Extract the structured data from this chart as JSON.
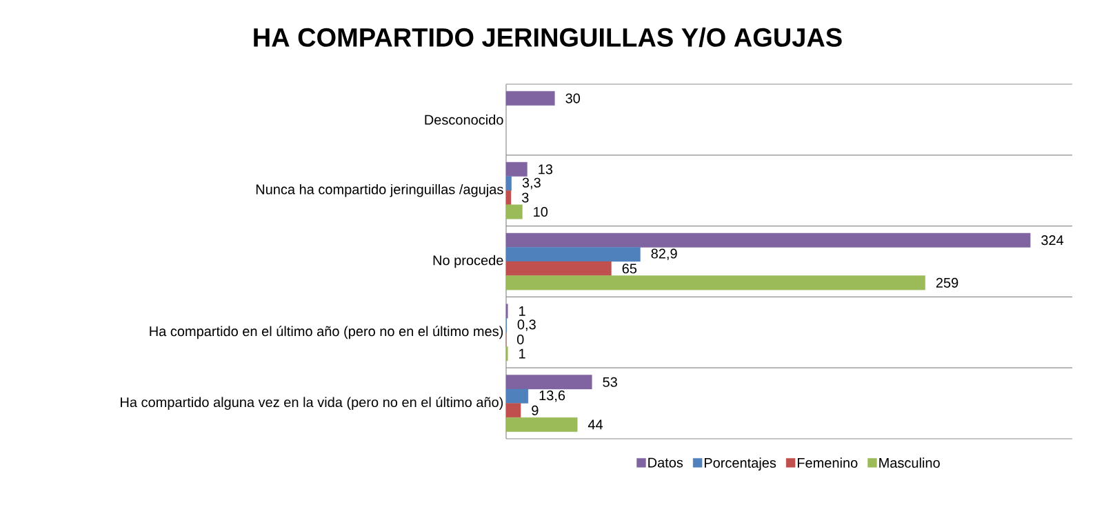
{
  "chart_data": {
    "type": "bar",
    "orientation": "horizontal",
    "title": "HA COMPARTIDO JERINGUILLAS Y/O AGUJAS",
    "categories": [
      "Desconocido",
      "Nunca ha compartido jeringuillas /agujas",
      "No procede",
      "Ha compartido en el último año (pero no en el último mes)",
      "Ha compartido alguna vez en la vida (pero no en el último año)"
    ],
    "series": [
      {
        "name": "Datos",
        "color": "#8064a2",
        "values": [
          30,
          13,
          324,
          1,
          53
        ],
        "value_labels": [
          "30",
          "13",
          "324",
          "1",
          "53"
        ]
      },
      {
        "name": "Porcentajes",
        "color": "#4f81bd",
        "values": [
          null,
          3.3,
          82.9,
          0.3,
          13.6
        ],
        "value_labels": [
          null,
          "3,3",
          "82,9",
          "0,3",
          "13,6"
        ]
      },
      {
        "name": "Femenino",
        "color": "#c0504d",
        "values": [
          null,
          3,
          65,
          0,
          9
        ],
        "value_labels": [
          null,
          "3",
          "65",
          "0",
          "9"
        ]
      },
      {
        "name": "Masculino",
        "color": "#9bbb59",
        "values": [
          null,
          10,
          259,
          1,
          44
        ],
        "value_labels": [
          null,
          "10",
          "259",
          "1",
          "44"
        ]
      }
    ],
    "grid": "y",
    "legend": "bottom"
  }
}
